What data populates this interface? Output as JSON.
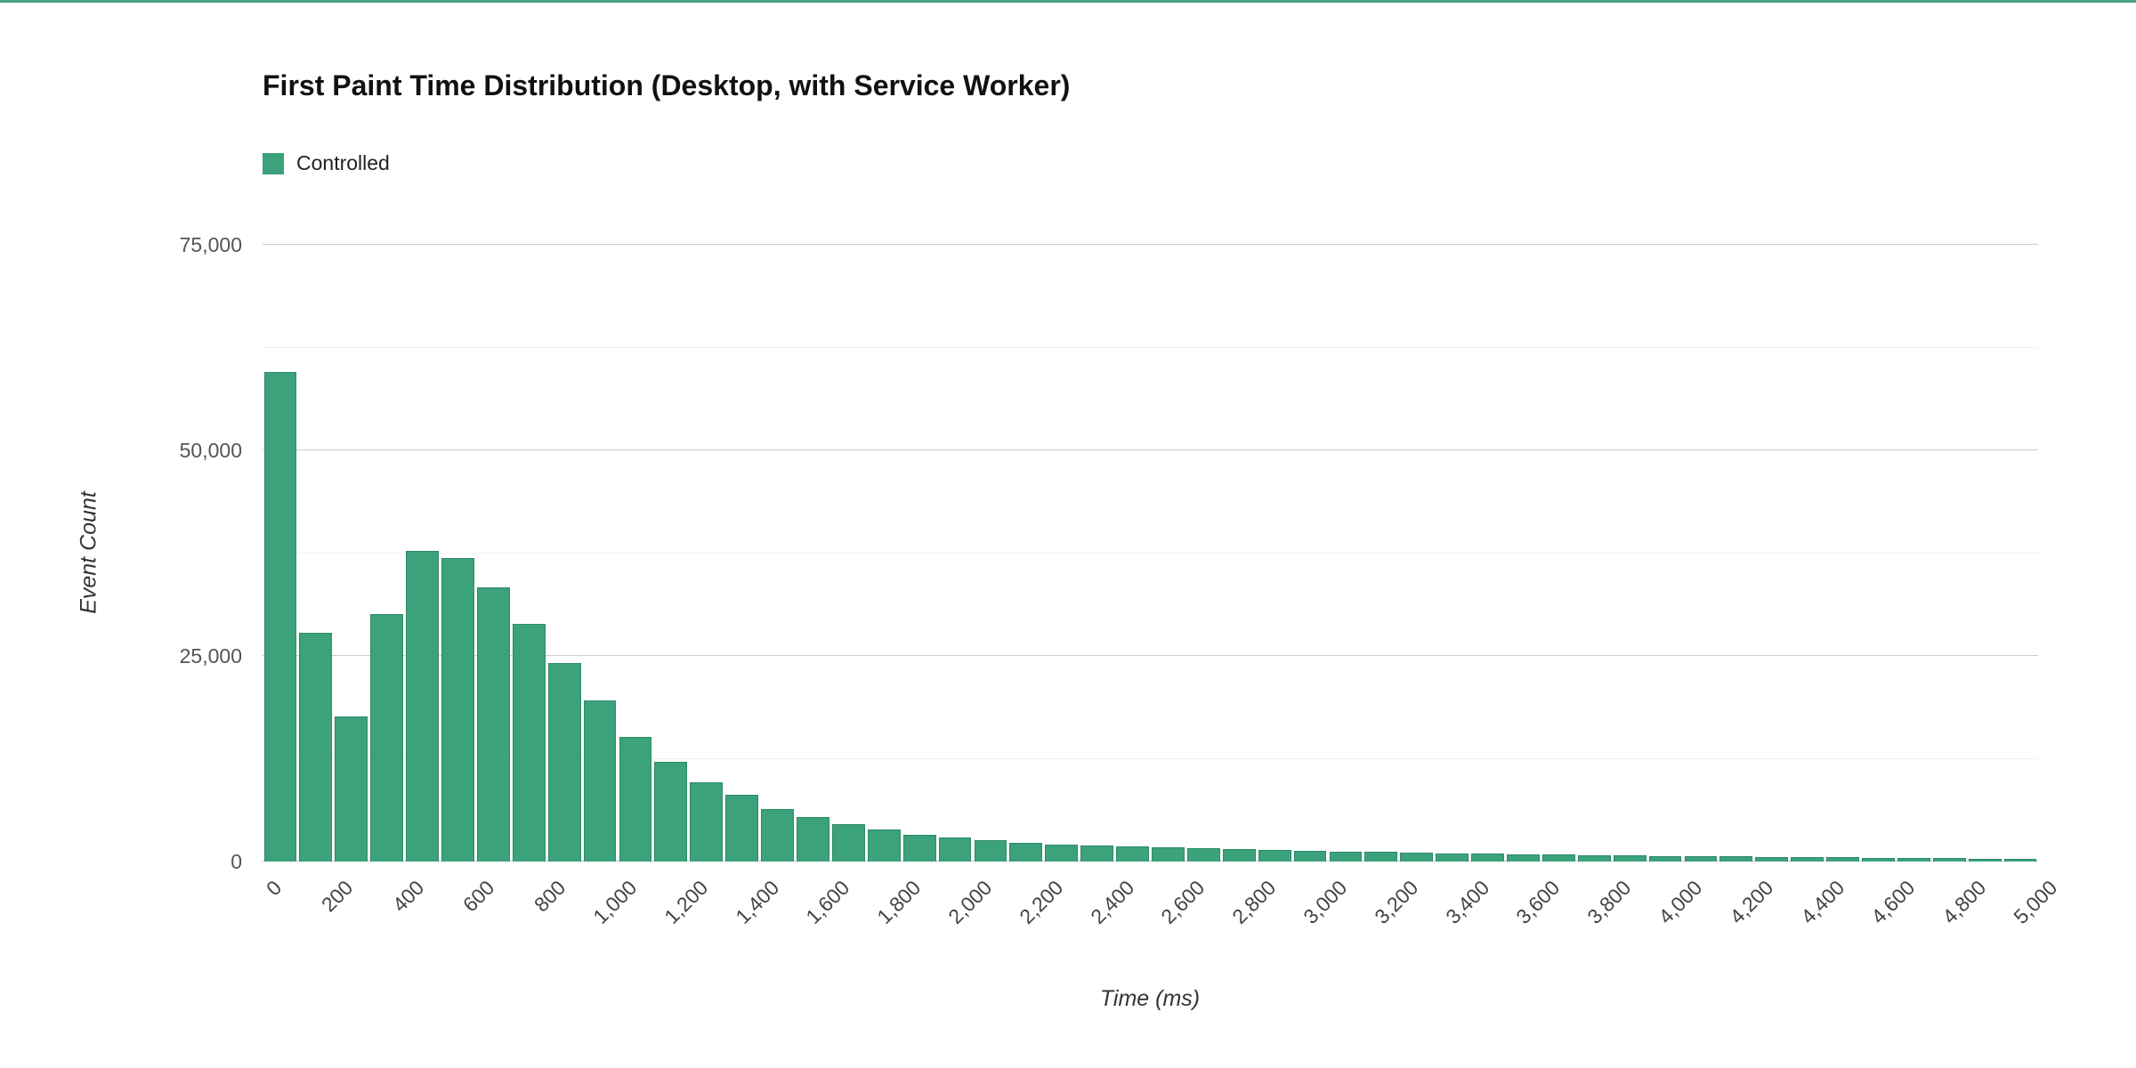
{
  "page": {
    "top_border_color": "#4ba37f",
    "background": "#ffffff"
  },
  "chart_data": {
    "type": "bar",
    "title": "First Paint Time Distribution (Desktop, with Service Worker)",
    "xlabel": "Time (ms)",
    "ylabel": "Event Count",
    "legend_position": "top-left",
    "grid": true,
    "bar_color": "#3ba27b",
    "bar_border_color": "#2e8a67",
    "bin_width_ms": 100,
    "x_range": [
      0,
      5000
    ],
    "ylim": [
      0,
      75000
    ],
    "y_ticks": [
      0,
      25000,
      50000,
      75000
    ],
    "y_tick_labels": [
      "0",
      "25,000",
      "50,000",
      "75,000"
    ],
    "y_minor_ticks": [
      12500,
      37500,
      62500
    ],
    "x_tick_step_ms": 200,
    "x_tick_labels": [
      "0",
      "200",
      "400",
      "600",
      "800",
      "1,000",
      "1,200",
      "1,400",
      "1,600",
      "1,800",
      "2,000",
      "2,200",
      "2,400",
      "2,600",
      "2,800",
      "3,000",
      "3,200",
      "3,400",
      "3,600",
      "3,800",
      "4,000",
      "4,200",
      "4,400",
      "4,600",
      "4,800",
      "5,000"
    ],
    "series": [
      {
        "name": "Controlled",
        "bin_starts_ms": [
          0,
          100,
          200,
          300,
          400,
          500,
          600,
          700,
          800,
          900,
          1000,
          1100,
          1200,
          1300,
          1400,
          1500,
          1600,
          1700,
          1800,
          1900,
          2000,
          2100,
          2200,
          2300,
          2400,
          2500,
          2600,
          2700,
          2800,
          2900,
          3000,
          3100,
          3200,
          3300,
          3400,
          3500,
          3600,
          3700,
          3800,
          3900,
          4000,
          4100,
          4200,
          4300,
          4400,
          4500,
          4600,
          4700,
          4800,
          4900
        ],
        "values": [
          59500,
          27800,
          17600,
          30100,
          37800,
          36900,
          33300,
          28900,
          24100,
          19600,
          15200,
          12100,
          9600,
          8100,
          6400,
          5400,
          4500,
          3900,
          3300,
          2900,
          2600,
          2300,
          2100,
          1900,
          1800,
          1700,
          1600,
          1500,
          1400,
          1300,
          1200,
          1150,
          1050,
          1000,
          950,
          900,
          850,
          800,
          750,
          700,
          650,
          600,
          570,
          540,
          500,
          470,
          440,
          410,
          380,
          350
        ]
      }
    ]
  }
}
